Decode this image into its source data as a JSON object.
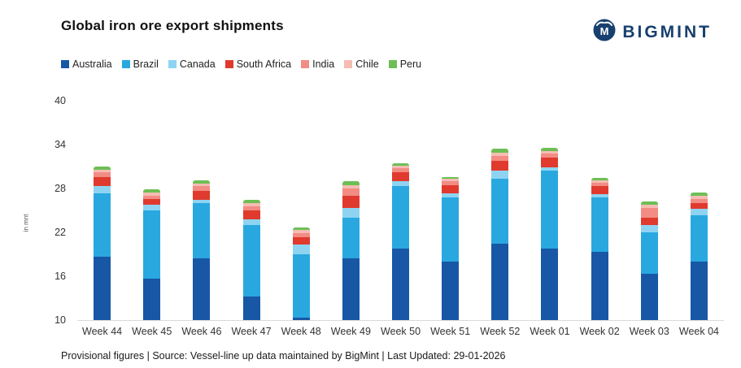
{
  "header": {
    "title": "Global iron ore export shipments",
    "brand": "BIGMINT"
  },
  "chart_data": {
    "type": "bar",
    "stacked": true,
    "title": "Global iron ore export shipments",
    "xlabel": "",
    "ylabel": "in mnt",
    "ylim": [
      10,
      40
    ],
    "yticks": [
      10,
      16,
      22,
      28,
      34,
      40
    ],
    "baseline": 10,
    "grid": false,
    "legend_position": "top-left",
    "categories": [
      "Week 44",
      "Week 45",
      "Week 46",
      "Week 47",
      "Week 48",
      "Week 49",
      "Week 50",
      "Week 51",
      "Week 52",
      "Week 01",
      "Week 02",
      "Week 03",
      "Week 04"
    ],
    "series": [
      {
        "name": "Australia",
        "color": "#1757a6",
        "values": [
          18.7,
          15.7,
          18.5,
          13.2,
          10.3,
          18.5,
          19.8,
          18.0,
          20.4,
          19.8,
          19.3,
          16.3,
          18.0
        ]
      },
      {
        "name": "Brazil",
        "color": "#29a8e0",
        "values": [
          8.6,
          9.3,
          7.5,
          9.8,
          8.7,
          5.5,
          8.5,
          8.8,
          8.9,
          10.6,
          7.5,
          5.7,
          6.3
        ]
      },
      {
        "name": "Canada",
        "color": "#8ed4f2",
        "values": [
          1.0,
          0.8,
          0.5,
          0.8,
          1.3,
          1.3,
          0.7,
          0.5,
          1.2,
          0.5,
          0.4,
          1.0,
          0.9
        ]
      },
      {
        "name": "South Africa",
        "color": "#e03a2e",
        "values": [
          1.3,
          0.8,
          1.2,
          1.2,
          1.0,
          1.7,
          1.2,
          1.2,
          1.3,
          1.3,
          1.1,
          1.0,
          0.8
        ]
      },
      {
        "name": "India",
        "color": "#f28c84",
        "values": [
          0.6,
          0.4,
          0.6,
          0.6,
          0.6,
          1.0,
          0.6,
          0.5,
          0.7,
          0.6,
          0.5,
          1.3,
          0.6
        ]
      },
      {
        "name": "Chile",
        "color": "#f5bcb2",
        "values": [
          0.4,
          0.4,
          0.4,
          0.4,
          0.4,
          0.5,
          0.3,
          0.3,
          0.4,
          0.3,
          0.3,
          0.5,
          0.4
        ]
      },
      {
        "name": "Peru",
        "color": "#6dbf54",
        "values": [
          0.4,
          0.5,
          0.4,
          0.5,
          0.4,
          0.5,
          0.4,
          0.3,
          0.6,
          0.5,
          0.3,
          0.4,
          0.4
        ]
      }
    ]
  },
  "footer": {
    "note": "Provisional figures | Source: Vessel-line up data maintained by BigMint | Last Updated: 29-01-2026"
  }
}
